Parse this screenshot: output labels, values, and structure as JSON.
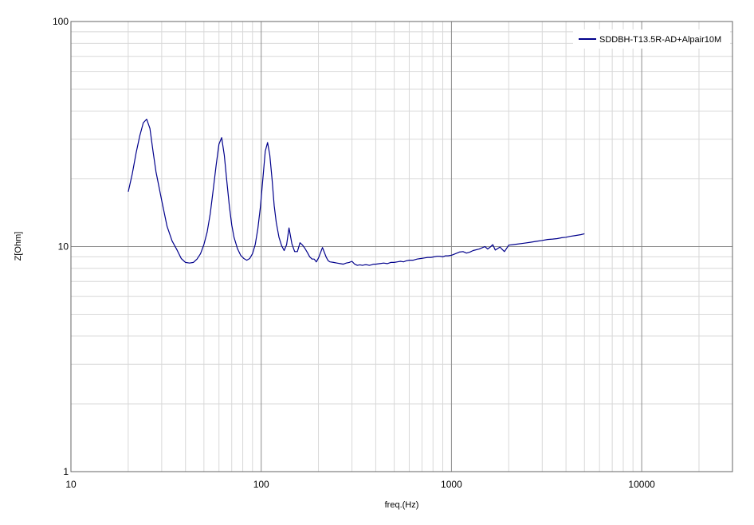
{
  "chart_data": {
    "type": "line",
    "title": "",
    "xlabel": "freq.(Hz)",
    "ylabel": "Z[Ohm]",
    "x_scale": "log",
    "y_scale": "log",
    "xlim": [
      10,
      30000
    ],
    "ylim": [
      1,
      100
    ],
    "x_ticks": [
      10,
      100,
      1000,
      10000
    ],
    "x_tick_labels": [
      "10",
      "100",
      "1000",
      "10000"
    ],
    "y_ticks": [
      1,
      10,
      100
    ],
    "y_tick_labels": [
      "1",
      "10",
      "100"
    ],
    "grid": true,
    "legend_position": "top-right",
    "series": [
      {
        "name": "SDDBH-T13.5R-AD+Alpair10M",
        "color": "#00008b",
        "x": [
          20,
          21,
          22,
          23,
          24,
          25,
          26,
          27,
          28,
          30,
          32,
          34,
          36,
          38,
          40,
          42,
          44,
          46,
          48,
          50,
          52,
          54,
          56,
          58,
          60,
          62,
          64,
          66,
          68,
          70,
          72,
          75,
          78,
          81,
          84,
          87,
          90,
          93,
          96,
          99,
          102,
          105,
          108,
          111,
          114,
          117,
          120,
          124,
          128,
          132,
          136,
          140,
          145,
          150,
          155,
          160,
          165,
          170,
          175,
          180,
          185,
          190,
          195,
          200,
          210,
          220,
          225,
          230,
          240,
          250,
          260,
          270,
          280,
          290,
          300,
          310,
          320,
          330,
          340,
          350,
          360,
          370,
          380,
          390,
          400,
          420,
          440,
          460,
          480,
          500,
          520,
          540,
          560,
          580,
          600,
          630,
          660,
          690,
          720,
          750,
          780,
          810,
          840,
          870,
          900,
          930,
          960,
          1000,
          1050,
          1100,
          1150,
          1200,
          1250,
          1300,
          1400,
          1500,
          1550,
          1600,
          1650,
          1700,
          1800,
          1850,
          1900,
          2000,
          2100,
          2200,
          2400,
          2600,
          2800,
          3000,
          3200,
          3400,
          3600,
          3800,
          4000,
          4200,
          4500,
          4800,
          5000
        ],
        "y": [
          17.5,
          21,
          26,
          31,
          35.5,
          36.8,
          33.5,
          26.5,
          21.5,
          16,
          12.3,
          10.6,
          9.7,
          8.85,
          8.5,
          8.45,
          8.5,
          8.8,
          9.3,
          10.2,
          11.6,
          14,
          18,
          23,
          28.5,
          30.5,
          25.5,
          19.5,
          15.2,
          12.5,
          11,
          9.8,
          9.15,
          8.85,
          8.7,
          8.85,
          9.3,
          10.2,
          12,
          15,
          20,
          26.5,
          29,
          25.5,
          20,
          15.2,
          12.8,
          11,
          10.1,
          9.6,
          10.2,
          12.1,
          10.3,
          9.5,
          9.5,
          10.4,
          10.15,
          9.8,
          9.4,
          9,
          8.8,
          8.8,
          8.55,
          8.9,
          9.9,
          8.95,
          8.65,
          8.55,
          8.5,
          8.45,
          8.4,
          8.35,
          8.45,
          8.5,
          8.6,
          8.35,
          8.25,
          8.3,
          8.25,
          8.3,
          8.3,
          8.25,
          8.3,
          8.35,
          8.35,
          8.4,
          8.45,
          8.4,
          8.5,
          8.5,
          8.55,
          8.6,
          8.55,
          8.65,
          8.7,
          8.7,
          8.8,
          8.85,
          8.9,
          8.95,
          8.95,
          9.0,
          9.05,
          9.05,
          9.0,
          9.1,
          9.1,
          9.15,
          9.3,
          9.45,
          9.5,
          9.35,
          9.45,
          9.6,
          9.75,
          10.0,
          9.75,
          9.95,
          10.2,
          9.65,
          9.95,
          9.7,
          9.5,
          10.15,
          10.2,
          10.25,
          10.35,
          10.45,
          10.55,
          10.65,
          10.75,
          10.8,
          10.85,
          10.95,
          11.0,
          11.1,
          11.2,
          11.3,
          11.4
        ]
      }
    ]
  }
}
